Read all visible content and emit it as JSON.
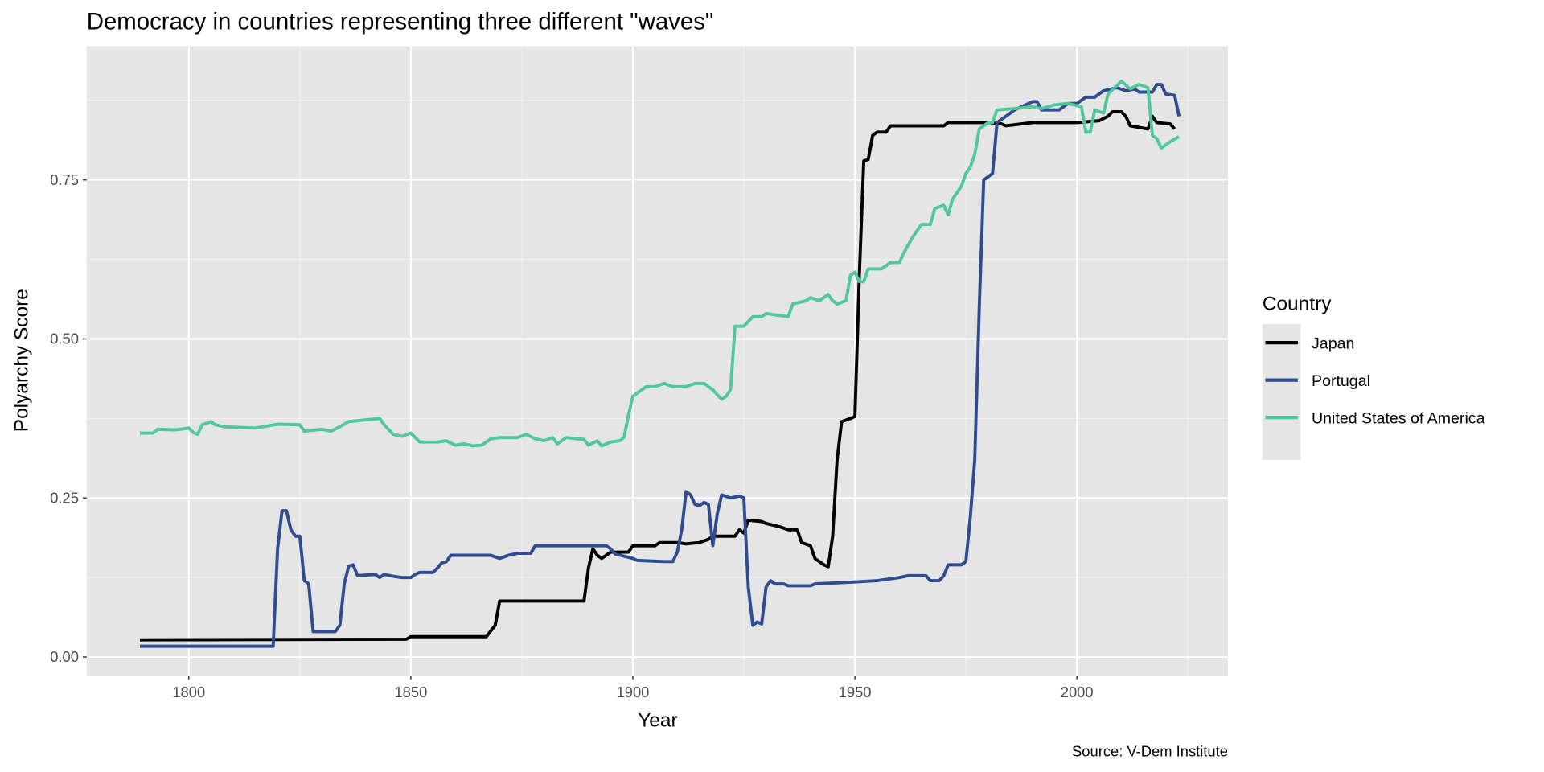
{
  "chart_data": {
    "type": "line",
    "title": "Democracy in countries representing three different \"waves\"",
    "xlabel": "Year",
    "ylabel": "Polyarchy Score",
    "caption": "Source: V-Dem Institute",
    "xlim": [
      1777,
      2034
    ],
    "ylim": [
      -0.029,
      0.96
    ],
    "x_ticks": [
      1800,
      1850,
      1900,
      1950,
      2000
    ],
    "x_tick_labels": [
      "1800",
      "1850",
      "1900",
      "1950",
      "2000"
    ],
    "y_ticks": [
      0,
      0.25,
      0.5,
      0.75
    ],
    "y_tick_labels": [
      "0.00",
      "0.25",
      "0.50",
      "0.75"
    ],
    "grid": true,
    "legend": {
      "title": "Country",
      "placement": "right"
    },
    "series": [
      {
        "name": "Japan",
        "color": "#000000",
        "x": [
          1789,
          1849,
          1850,
          1867,
          1869,
          1870,
          1889,
          1890,
          1891,
          1892,
          1893,
          1895,
          1899,
          1900,
          1905,
          1906,
          1910,
          1912,
          1915,
          1917,
          1918,
          1923,
          1924,
          1925,
          1926,
          1929,
          1930,
          1933,
          1935,
          1937,
          1938,
          1940,
          1941,
          1943,
          1944,
          1945,
          1946,
          1947,
          1949,
          1950,
          1951,
          1952,
          1953,
          1954,
          1955,
          1957,
          1958,
          1960,
          1970,
          1971,
          1980,
          1983,
          1984,
          1990,
          2000,
          2005,
          2007,
          2008,
          2010,
          2011,
          2012,
          2016,
          2017,
          2018,
          2021,
          2022
        ],
        "y": [
          0.027,
          0.028,
          0.032,
          0.032,
          0.05,
          0.088,
          0.088,
          0.14,
          0.17,
          0.16,
          0.155,
          0.165,
          0.165,
          0.175,
          0.175,
          0.18,
          0.18,
          0.178,
          0.18,
          0.185,
          0.19,
          0.19,
          0.2,
          0.195,
          0.215,
          0.213,
          0.21,
          0.205,
          0.2,
          0.2,
          0.18,
          0.175,
          0.155,
          0.145,
          0.142,
          0.19,
          0.31,
          0.37,
          0.375,
          0.378,
          0.6,
          0.78,
          0.782,
          0.82,
          0.825,
          0.825,
          0.835,
          0.835,
          0.835,
          0.84,
          0.84,
          0.838,
          0.835,
          0.84,
          0.84,
          0.843,
          0.85,
          0.857,
          0.857,
          0.85,
          0.835,
          0.83,
          0.85,
          0.84,
          0.838,
          0.83
        ]
      },
      {
        "name": "Portugal",
        "color": "#2e4c8f",
        "x": [
          1789,
          1819,
          1820,
          1821,
          1822,
          1823,
          1824,
          1825,
          1826,
          1827,
          1828,
          1833,
          1834,
          1835,
          1836,
          1837,
          1838,
          1842,
          1843,
          1844,
          1846,
          1848,
          1850,
          1851,
          1852,
          1855,
          1856,
          1857,
          1858,
          1859,
          1865,
          1868,
          1870,
          1872,
          1874,
          1877,
          1878,
          1894,
          1895,
          1896,
          1900,
          1901,
          1907,
          1909,
          1910,
          1911,
          1912,
          1913,
          1914,
          1915,
          1916,
          1917,
          1918,
          1919,
          1920,
          1922,
          1924,
          1925,
          1926,
          1927,
          1928,
          1929,
          1930,
          1931,
          1932,
          1934,
          1935,
          1940,
          1941,
          1950,
          1955,
          1960,
          1962,
          1966,
          1967,
          1969,
          1970,
          1971,
          1974,
          1975,
          1976,
          1977,
          1978,
          1979,
          1981,
          1982,
          1984,
          1986,
          1990,
          1991,
          1992,
          1996,
          1998,
          2000,
          2002,
          2004,
          2006,
          2009,
          2011,
          2013,
          2014,
          2017,
          2018,
          2019,
          2020,
          2022,
          2023
        ],
        "y": [
          0.017,
          0.017,
          0.17,
          0.23,
          0.23,
          0.2,
          0.19,
          0.19,
          0.12,
          0.115,
          0.04,
          0.04,
          0.05,
          0.115,
          0.143,
          0.145,
          0.128,
          0.13,
          0.125,
          0.13,
          0.127,
          0.125,
          0.125,
          0.13,
          0.133,
          0.133,
          0.14,
          0.148,
          0.15,
          0.16,
          0.16,
          0.16,
          0.155,
          0.16,
          0.163,
          0.163,
          0.175,
          0.175,
          0.17,
          0.162,
          0.155,
          0.152,
          0.15,
          0.15,
          0.165,
          0.2,
          0.26,
          0.255,
          0.24,
          0.238,
          0.243,
          0.24,
          0.175,
          0.225,
          0.255,
          0.25,
          0.253,
          0.25,
          0.11,
          0.05,
          0.055,
          0.052,
          0.11,
          0.12,
          0.115,
          0.115,
          0.112,
          0.112,
          0.115,
          0.118,
          0.12,
          0.125,
          0.128,
          0.128,
          0.12,
          0.12,
          0.128,
          0.145,
          0.145,
          0.15,
          0.22,
          0.31,
          0.55,
          0.75,
          0.76,
          0.84,
          0.85,
          0.86,
          0.873,
          0.873,
          0.86,
          0.86,
          0.87,
          0.87,
          0.88,
          0.88,
          0.89,
          0.895,
          0.89,
          0.893,
          0.888,
          0.888,
          0.9,
          0.9,
          0.885,
          0.883,
          0.85
        ]
      },
      {
        "name": "United States of America",
        "color": "#51c89c",
        "x": [
          1789,
          1792,
          1793,
          1797,
          1800,
          1801,
          1802,
          1803,
          1805,
          1806,
          1808,
          1815,
          1820,
          1825,
          1826,
          1830,
          1832,
          1834,
          1836,
          1840,
          1843,
          1844,
          1846,
          1848,
          1850,
          1852,
          1856,
          1858,
          1860,
          1862,
          1864,
          1866,
          1868,
          1870,
          1874,
          1876,
          1878,
          1880,
          1882,
          1883,
          1885,
          1889,
          1890,
          1892,
          1893,
          1895,
          1897,
          1898,
          1899,
          1900,
          1902,
          1903,
          1905,
          1907,
          1909,
          1912,
          1914,
          1916,
          1918,
          1920,
          1921,
          1922,
          1923,
          1925,
          1927,
          1929,
          1930,
          1935,
          1936,
          1939,
          1940,
          1942,
          1944,
          1945,
          1946,
          1948,
          1949,
          1950,
          1951,
          1952,
          1953,
          1956,
          1958,
          1960,
          1961,
          1963,
          1965,
          1967,
          1968,
          1970,
          1971,
          1972,
          1974,
          1975,
          1976,
          1977,
          1978,
          1980,
          1981,
          1982,
          1986,
          1990,
          1992,
          1995,
          1998,
          2001,
          2002,
          2003,
          2004,
          2006,
          2007,
          2010,
          2012,
          2014,
          2016,
          2017,
          2018,
          2019,
          2021,
          2023
        ],
        "y": [
          0.352,
          0.352,
          0.358,
          0.357,
          0.36,
          0.353,
          0.35,
          0.365,
          0.37,
          0.365,
          0.362,
          0.36,
          0.366,
          0.365,
          0.355,
          0.358,
          0.355,
          0.362,
          0.37,
          0.373,
          0.375,
          0.365,
          0.35,
          0.347,
          0.352,
          0.338,
          0.338,
          0.34,
          0.333,
          0.335,
          0.332,
          0.333,
          0.343,
          0.345,
          0.345,
          0.35,
          0.343,
          0.34,
          0.345,
          0.335,
          0.345,
          0.342,
          0.333,
          0.34,
          0.332,
          0.338,
          0.34,
          0.345,
          0.38,
          0.41,
          0.42,
          0.425,
          0.425,
          0.43,
          0.425,
          0.425,
          0.43,
          0.43,
          0.42,
          0.405,
          0.41,
          0.42,
          0.52,
          0.52,
          0.535,
          0.535,
          0.54,
          0.535,
          0.555,
          0.56,
          0.565,
          0.56,
          0.57,
          0.56,
          0.555,
          0.56,
          0.6,
          0.605,
          0.59,
          0.59,
          0.61,
          0.61,
          0.62,
          0.62,
          0.635,
          0.66,
          0.68,
          0.68,
          0.705,
          0.71,
          0.695,
          0.72,
          0.74,
          0.76,
          0.77,
          0.79,
          0.83,
          0.84,
          0.84,
          0.86,
          0.862,
          0.865,
          0.862,
          0.868,
          0.87,
          0.865,
          0.825,
          0.825,
          0.86,
          0.855,
          0.885,
          0.905,
          0.893,
          0.9,
          0.895,
          0.82,
          0.815,
          0.8,
          0.81,
          0.818
        ]
      }
    ]
  }
}
